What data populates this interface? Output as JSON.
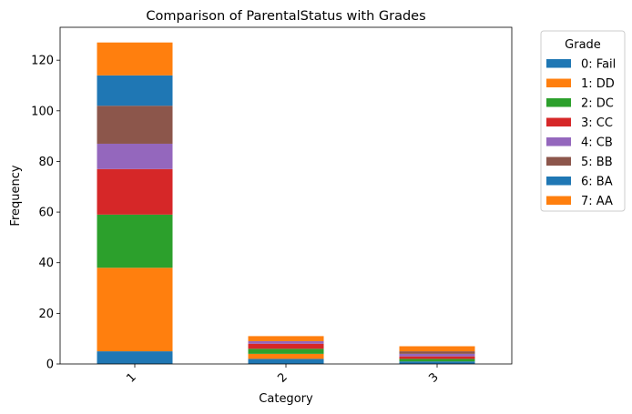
{
  "chart_data": {
    "type": "bar",
    "stacked": true,
    "title": "Comparison of ParentalStatus with Grades",
    "xlabel": "Category",
    "ylabel": "Frequency",
    "categories": [
      "1",
      "2",
      "3"
    ],
    "ylim": [
      0,
      133
    ],
    "yticks": [
      0,
      20,
      40,
      60,
      80,
      100,
      120
    ],
    "legend_title": "Grade",
    "legend_position": "outside-top-right",
    "grid": false,
    "series": [
      {
        "name": "0: Fail",
        "color": "#1f77b4",
        "values": [
          5,
          2,
          1
        ]
      },
      {
        "name": "1: DD",
        "color": "#ff7f0e",
        "values": [
          33,
          2,
          0
        ]
      },
      {
        "name": "2: DC",
        "color": "#2ca02c",
        "values": [
          21,
          2,
          1
        ]
      },
      {
        "name": "3: CC",
        "color": "#d62728",
        "values": [
          18,
          2,
          1
        ]
      },
      {
        "name": "4: CB",
        "color": "#9467bd",
        "values": [
          10,
          1,
          1
        ]
      },
      {
        "name": "5: BB",
        "color": "#8c564b",
        "values": [
          15,
          0,
          1
        ]
      },
      {
        "name": "6: BA",
        "color": "#1f77b4",
        "values": [
          12,
          0,
          0
        ]
      },
      {
        "name": "7: AA",
        "color": "#ff7f0e",
        "values": [
          13,
          2,
          2
        ]
      }
    ]
  }
}
